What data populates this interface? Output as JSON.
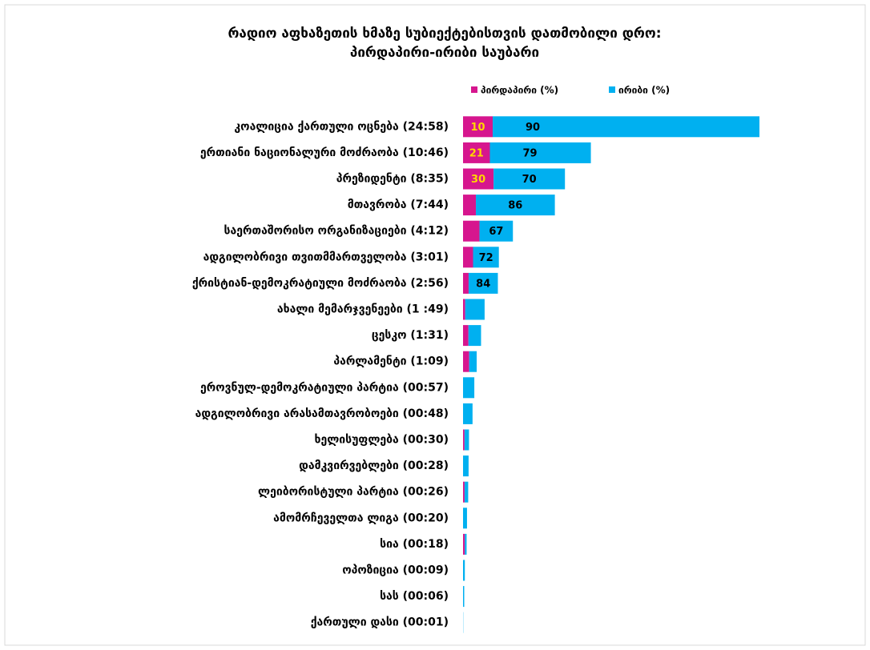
{
  "chart_data": {
    "type": "stacked-barh",
    "title": "რადიო აფხაზეთის ხმაზე სუბიექტებისთვის დათმობილი დრო:",
    "subtitle": "პირდაპირი-ირიბი საუბარი",
    "categories": [
      "კოალიცია ქართული ოცნება (24:58)",
      "ერთიანი ნაციონალური მოძრაობა (10:46)",
      "პრეზიდენტი (8:35)",
      "მთავრობა (7:44)",
      "საერთაშორისო ორგანიზაციები (4:12)",
      "ადგილობრივი თვითმმართველობა (3:01)",
      "ქრისტიან-დემოკრატიული მოძრაობა (2:56)",
      "ახალი მემარჯვენეები (1 :49)",
      "ცესკო (1:31)",
      "პარლამენტი (1:09)",
      "ეროვნულ-დემოკრატიული პარტია (00:57)",
      "ადგილობრივი არასამთავრობოები (00:48)",
      "ხელისუფლება (00:30)",
      "დამკვირვებლები (00:28)",
      "ლეიბორისტული პარტია (00:26)",
      "ამომრჩეველთა ლიგა (00:20)",
      "სია (00:18)",
      "ოპოზიცია (00:09)",
      "სას (00:06)",
      "ქართული დასი (00:01)"
    ],
    "series": [
      {
        "name": "პირდაპირი (%)",
        "color": "#d6168e",
        "label_color": "#ffd700",
        "values": [
          10,
          21,
          30,
          14,
          33,
          28,
          16,
          10,
          30,
          45,
          0,
          0,
          25,
          0,
          30,
          0,
          50,
          0,
          0,
          0
        ]
      },
      {
        "name": "ირიბი (%)",
        "color": "#00b0f0",
        "label_color": "#000000",
        "values": [
          90,
          79,
          70,
          86,
          67,
          72,
          84,
          90,
          70,
          55,
          100,
          100,
          75,
          100,
          70,
          100,
          50,
          100,
          100,
          100
        ]
      }
    ]
  }
}
